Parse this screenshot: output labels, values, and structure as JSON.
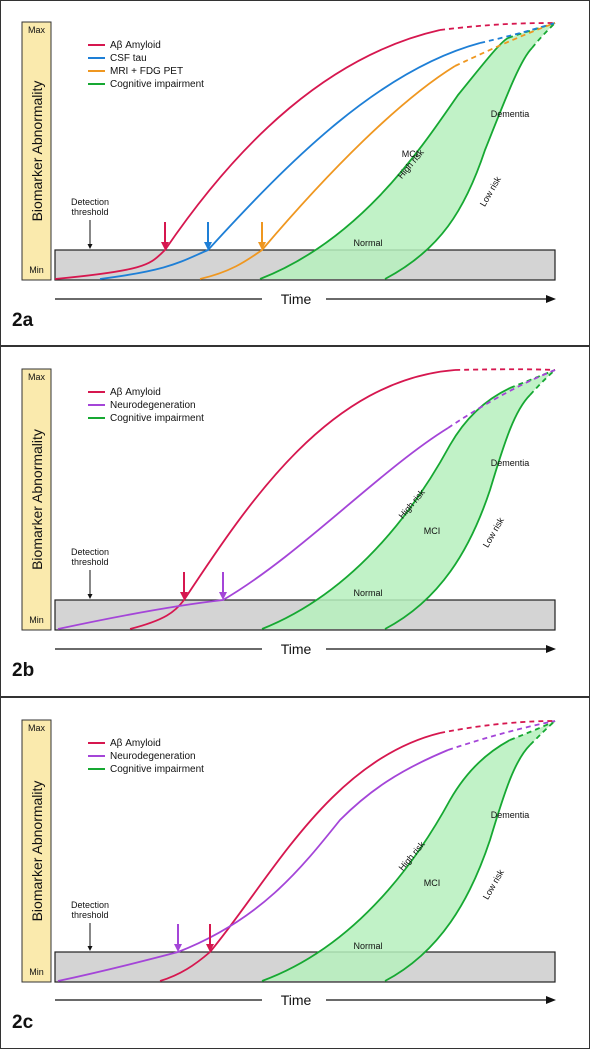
{
  "axis": {
    "ylabel": "Biomarker Abnormality",
    "ymax": "Max",
    "ymin": "Min",
    "time": "Time"
  },
  "annotations": {
    "detection": "Detection threshold",
    "normal": "Normal",
    "mci": "MCI",
    "dementia": "Dementia",
    "high_risk": "High risk",
    "low_risk": "Low risk"
  },
  "colors": {
    "amyloid": "#d6174f",
    "tau": "#1e7fd6",
    "mri": "#ef9720",
    "neuro": "#a445d8",
    "cognitive": "#16a832",
    "fill": "#b6f0bd",
    "threshold_box": "#d4d4d4",
    "yaxis_bg": "#faeaad"
  },
  "panels": [
    {
      "id": "2a",
      "label": "2a",
      "legend": [
        "Aβ Amyloid",
        "CSF tau",
        "MRI + FDG PET",
        "Cognitive impairment"
      ]
    },
    {
      "id": "2b",
      "label": "2b",
      "legend": [
        "Aβ Amyloid",
        "Neurodegeneration",
        "Cognitive impairment"
      ]
    },
    {
      "id": "2c",
      "label": "2c",
      "legend": [
        "Aβ Amyloid",
        "Neurodegeneration",
        "Cognitive impairment"
      ]
    }
  ]
}
